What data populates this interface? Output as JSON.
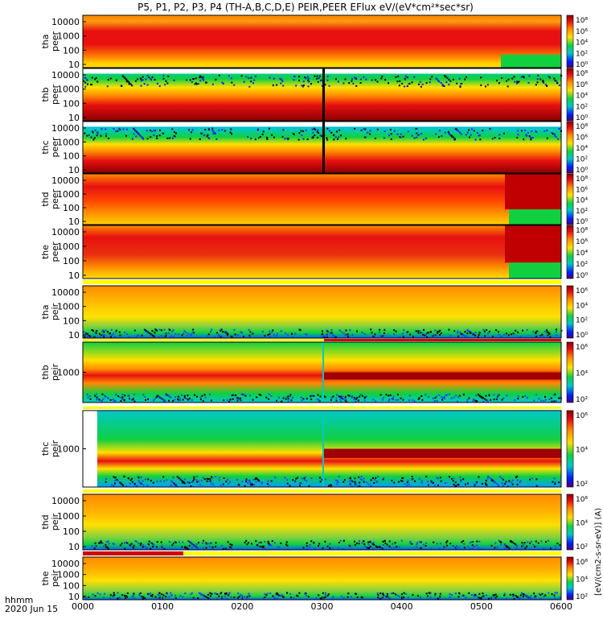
{
  "title": "P5, P1, P2, P3, P4 (TH-A,B,C,D,E) PEIR,PEER EFlux eV/(eV*cm²*sec*sr)",
  "footer": {
    "label1": "hhmm",
    "label2": "2020 Jun 15"
  },
  "colorbar_unit": "[eV/(cm2-s-sr-eV)] (A)",
  "colorbar_ticks": [
    "10⁸",
    "10⁶",
    "10⁴",
    "10²",
    "10⁰"
  ],
  "chart_data": {
    "type": "heatmap",
    "x_tick_labels": [
      "0000",
      "0100",
      "0200",
      "0300",
      "0400",
      "0500",
      "0600"
    ],
    "x_range": [
      "0000",
      "0600"
    ],
    "y_scale": "log",
    "y_unit": "eV",
    "colorscale": "rainbow (blue-green-yellow-red-darkred)",
    "panels": [
      {
        "probe": "tha",
        "species": "peer",
        "yticks": [
          "10000",
          "1000",
          "100",
          "10"
        ],
        "cbar_ticks": [
          "10⁸",
          "10⁶",
          "10⁴",
          "10²",
          "10⁰"
        ]
      },
      {
        "probe": "thb",
        "species": "peer",
        "yticks": [
          "10000",
          "1000",
          "100",
          "10"
        ],
        "cbar_ticks": [
          "10⁸",
          "10⁶",
          "10⁴",
          "10²",
          "10⁰"
        ]
      },
      {
        "probe": "thc",
        "species": "peer",
        "yticks": [
          "10000",
          "1000",
          "100",
          "10"
        ],
        "cbar_ticks": [
          "10⁸",
          "10⁶",
          "10⁴",
          "10²",
          "10⁰"
        ]
      },
      {
        "probe": "thd",
        "species": "peer",
        "yticks": [
          "10000",
          "1000",
          "100",
          "10"
        ],
        "cbar_ticks": [
          "10⁸",
          "10⁶",
          "10⁴",
          "10²",
          "10⁰"
        ]
      },
      {
        "probe": "the",
        "species": "peer",
        "yticks": [
          "10000",
          "1000",
          "100",
          "10"
        ],
        "cbar_ticks": [
          "10⁸",
          "10⁶",
          "10⁴",
          "10²",
          "10⁰"
        ]
      },
      {
        "probe": "tha",
        "species": "peir",
        "yticks": [
          "10000",
          "1000",
          "100",
          "10"
        ],
        "cbar_ticks": [
          "10⁶",
          "10⁴",
          "10²",
          "10⁰"
        ]
      },
      {
        "probe": "thb",
        "species": "peir",
        "yticks": [
          "1000"
        ],
        "cbar_ticks": [
          "10⁶",
          "10⁴",
          "10²"
        ]
      },
      {
        "probe": "thc",
        "species": "peir",
        "yticks": [
          "1000"
        ],
        "cbar_ticks": [
          "10⁶",
          "10⁴",
          "10²"
        ]
      },
      {
        "probe": "thd",
        "species": "peir",
        "yticks": [
          "10000",
          "1000",
          "100",
          "10"
        ],
        "cbar_ticks": [
          "10⁶",
          "10⁴",
          "10²"
        ]
      },
      {
        "probe": "the",
        "species": "peir",
        "yticks": [
          "10000",
          "1000",
          "100",
          "10"
        ],
        "cbar_ticks": [
          "10⁶",
          "10⁴",
          "10²"
        ]
      }
    ]
  },
  "colors": {
    "darkred": "#8b0000",
    "red": "#e81010",
    "orange": "#ff8a00",
    "yellow": "#ffe000",
    "green": "#10d040",
    "cyan": "#00c8c8",
    "blue": "#0030ff",
    "purple": "#7000a0",
    "black": "#000000",
    "flag_red": "#d00000",
    "flag_yellow": "#ffff00"
  }
}
